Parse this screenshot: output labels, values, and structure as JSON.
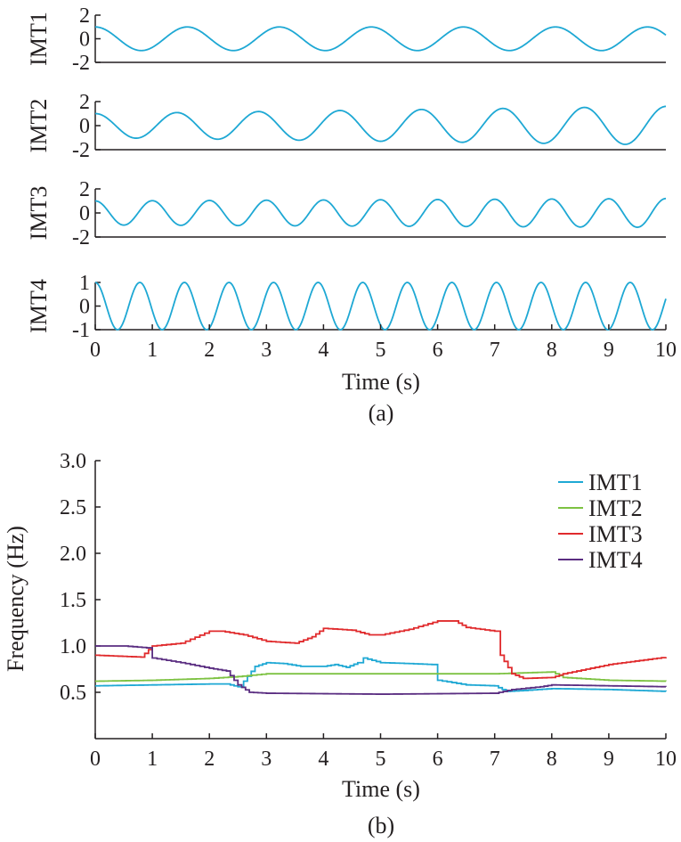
{
  "chart_data": [
    {
      "type": "line",
      "panel": "a",
      "caption": "(a)",
      "xlabel": "Time (s)",
      "xlim": [
        0,
        10
      ],
      "xticks": [
        0,
        1,
        2,
        3,
        4,
        5,
        6,
        7,
        8,
        9,
        10
      ],
      "line_color": "#1ea8d4",
      "subplots": [
        {
          "ylabel": "IMT1",
          "ylim": [
            -2,
            2
          ],
          "yticks": [
            2,
            0,
            -2
          ],
          "amplitude_start": 1.0,
          "amplitude_end": 1.0,
          "frequency_hz": 0.62
        },
        {
          "ylabel": "IMT2",
          "ylim": [
            -2,
            2
          ],
          "yticks": [
            2,
            0,
            -2
          ],
          "amplitude_start": 1.0,
          "amplitude_end": 1.6,
          "frequency_hz": 0.7
        },
        {
          "ylabel": "IMT3",
          "ylim": [
            -2,
            2
          ],
          "yticks": [
            2,
            0,
            -2
          ],
          "amplitude_start": 1.0,
          "amplitude_end": 1.2,
          "frequency_hz": 1.0
        },
        {
          "ylabel": "IMT4",
          "ylim": [
            -1,
            1
          ],
          "yticks": [
            1,
            0,
            -1
          ],
          "amplitude_start": 1.0,
          "amplitude_end": 1.0,
          "frequency_hz": 1.28
        }
      ]
    },
    {
      "type": "line",
      "panel": "b",
      "caption": "(b)",
      "xlabel": "Time (s)",
      "ylabel": "Frequency (Hz)",
      "xlim": [
        0,
        10
      ],
      "ylim": [
        0,
        3
      ],
      "xticks": [
        0,
        1,
        2,
        3,
        4,
        5,
        6,
        7,
        8,
        9,
        10
      ],
      "yticks": [
        "0.5",
        "1.0",
        "1.5",
        "2.0",
        "2.5",
        "3.0"
      ],
      "legend": "top-right",
      "series": [
        {
          "name": "IMT1",
          "color": "#1ea8d4",
          "x": [
            0,
            1,
            2,
            2.3,
            2.5,
            2.6,
            2.8,
            3.0,
            3.3,
            3.6,
            4.0,
            4.2,
            4.4,
            4.6,
            4.7,
            5.0,
            5.5,
            5.9,
            6.0,
            6.5,
            7.0,
            7.2,
            7.5,
            8.0,
            9.0,
            10.0
          ],
          "y": [
            0.57,
            0.58,
            0.59,
            0.59,
            0.56,
            0.62,
            0.78,
            0.82,
            0.81,
            0.78,
            0.78,
            0.8,
            0.77,
            0.82,
            0.87,
            0.82,
            0.81,
            0.8,
            0.63,
            0.58,
            0.57,
            0.51,
            0.52,
            0.54,
            0.53,
            0.51
          ]
        },
        {
          "name": "IMT2",
          "color": "#7dc242",
          "x": [
            0,
            1,
            2,
            2.5,
            3.0,
            5.0,
            7.0,
            7.5,
            8.0,
            8.2,
            9.0,
            10.0
          ],
          "y": [
            0.62,
            0.63,
            0.65,
            0.67,
            0.7,
            0.7,
            0.7,
            0.71,
            0.72,
            0.66,
            0.63,
            0.62
          ]
        },
        {
          "name": "IMT3",
          "color": "#e02a2c",
          "x": [
            0,
            0.8,
            1.0,
            1.5,
            2.0,
            2.2,
            2.6,
            3.0,
            3.5,
            3.8,
            4.0,
            4.5,
            4.8,
            5.0,
            5.5,
            6.0,
            6.3,
            6.5,
            7.0,
            7.1,
            7.3,
            7.5,
            8.0,
            8.2,
            9.0,
            10.0
          ],
          "y": [
            0.9,
            0.88,
            1.0,
            1.03,
            1.16,
            1.16,
            1.12,
            1.05,
            1.03,
            1.1,
            1.19,
            1.17,
            1.12,
            1.12,
            1.18,
            1.27,
            1.27,
            1.2,
            1.16,
            0.9,
            0.7,
            0.65,
            0.66,
            0.7,
            0.8,
            0.88
          ]
        },
        {
          "name": "IMT4",
          "color": "#5a2d81",
          "x": [
            0,
            0.5,
            0.9,
            1.0,
            1.5,
            2.0,
            2.3,
            2.5,
            2.7,
            3.0,
            5.0,
            7.0,
            7.3,
            7.8,
            8.0,
            9.0,
            10.0
          ],
          "y": [
            1.0,
            1.0,
            0.98,
            0.87,
            0.82,
            0.76,
            0.73,
            0.58,
            0.5,
            0.49,
            0.48,
            0.49,
            0.53,
            0.56,
            0.58,
            0.57,
            0.56
          ]
        }
      ]
    }
  ]
}
